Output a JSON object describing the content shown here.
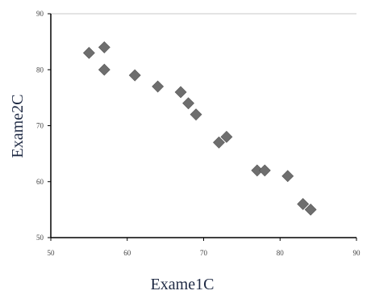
{
  "chart_data": {
    "type": "scatter",
    "title": "",
    "xlabel": "Exame1C",
    "ylabel": "Exame2C",
    "xlim": [
      50,
      90
    ],
    "ylim": [
      50,
      90
    ],
    "xticks": [
      50,
      60,
      70,
      80,
      90
    ],
    "yticks": [
      50,
      60,
      70,
      80,
      90
    ],
    "grid": "horizontal-top-only",
    "marker": "diamond",
    "marker_color": "#6e6e6e",
    "points": [
      {
        "x": 55,
        "y": 83
      },
      {
        "x": 57,
        "y": 84
      },
      {
        "x": 57,
        "y": 80
      },
      {
        "x": 61,
        "y": 79
      },
      {
        "x": 64,
        "y": 77
      },
      {
        "x": 67,
        "y": 76
      },
      {
        "x": 68,
        "y": 74
      },
      {
        "x": 69,
        "y": 72
      },
      {
        "x": 72,
        "y": 67
      },
      {
        "x": 73,
        "y": 68
      },
      {
        "x": 77,
        "y": 62
      },
      {
        "x": 78,
        "y": 62
      },
      {
        "x": 81,
        "y": 61
      },
      {
        "x": 83,
        "y": 56
      },
      {
        "x": 84,
        "y": 55
      }
    ]
  }
}
